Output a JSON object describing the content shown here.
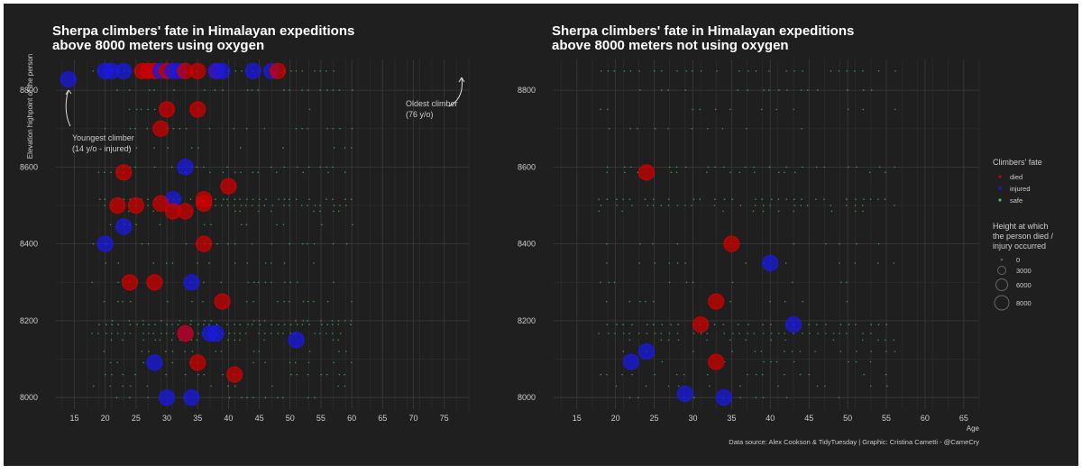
{
  "background": "#1f1f1f",
  "colors": {
    "died": "#cc0000",
    "injured": "#1a1adf",
    "safe": "#3fbf5f",
    "grid": "#3a3a3a",
    "text": "#cccccc",
    "title": "#ffffff"
  },
  "caption": "Data source: Alex Cookson & TidyTuesday | Graphic: Cristina Cametti - @CameCry",
  "legend": {
    "fate_title": "Climbers' fate",
    "fate_items": [
      "died",
      "injured",
      "safe"
    ],
    "size_title_lines": [
      "Height at which",
      "the person died /",
      "injury occurred"
    ],
    "size_items": [
      "0",
      "3000",
      "6000",
      "8000"
    ]
  },
  "annotations": {
    "youngest_line1": "Youngest climber",
    "youngest_line2": "(14 y/o - injured)",
    "oldest_line1": "Oldest climber",
    "oldest_line2": "(76 y/o)"
  },
  "chart_data": [
    {
      "type": "scatter",
      "title_lines": [
        "Sherpa climbers' fate in Himalayan expeditions",
        "above 8000 meters using oxygen"
      ],
      "xlabel": "",
      "ylabel": "Elevation highpoint of the person",
      "xlim": [
        12,
        79
      ],
      "ylim": [
        7970,
        8880
      ],
      "xticks": [
        15,
        20,
        25,
        30,
        35,
        40,
        45,
        50,
        55,
        60,
        65,
        70,
        75
      ],
      "yticks": [
        8000,
        8200,
        8400,
        8600,
        8800
      ],
      "points": [
        {
          "x": 14,
          "y": 8828,
          "fate": "injured"
        },
        {
          "x": 20,
          "y": 8850,
          "fate": "injured"
        },
        {
          "x": 21,
          "y": 8850,
          "fate": "injured"
        },
        {
          "x": 23,
          "y": 8850,
          "fate": "injured"
        },
        {
          "x": 26,
          "y": 8850,
          "fate": "died"
        },
        {
          "x": 27,
          "y": 8850,
          "fate": "died"
        },
        {
          "x": 28,
          "y": 8850,
          "fate": "died"
        },
        {
          "x": 29,
          "y": 8850,
          "fate": "injured"
        },
        {
          "x": 30,
          "y": 8850,
          "fate": "died"
        },
        {
          "x": 31,
          "y": 8850,
          "fate": "injured"
        },
        {
          "x": 32,
          "y": 8850,
          "fate": "injured"
        },
        {
          "x": 33,
          "y": 8850,
          "fate": "died"
        },
        {
          "x": 35,
          "y": 8850,
          "fate": "died"
        },
        {
          "x": 38,
          "y": 8850,
          "fate": "died"
        },
        {
          "x": 38,
          "y": 8850,
          "fate": "injured"
        },
        {
          "x": 39,
          "y": 8850,
          "fate": "injured"
        },
        {
          "x": 44,
          "y": 8850,
          "fate": "injured"
        },
        {
          "x": 47,
          "y": 8850,
          "fate": "injured"
        },
        {
          "x": 48,
          "y": 8850,
          "fate": "died"
        },
        {
          "x": 30,
          "y": 8750,
          "fate": "died"
        },
        {
          "x": 35,
          "y": 8750,
          "fate": "died"
        },
        {
          "x": 29,
          "y": 8700,
          "fate": "died"
        },
        {
          "x": 33,
          "y": 8600,
          "fate": "injured"
        },
        {
          "x": 23,
          "y": 8586,
          "fate": "died"
        },
        {
          "x": 40,
          "y": 8550,
          "fate": "died"
        },
        {
          "x": 31,
          "y": 8516,
          "fate": "injured"
        },
        {
          "x": 36,
          "y": 8516,
          "fate": "died"
        },
        {
          "x": 22,
          "y": 8500,
          "fate": "died"
        },
        {
          "x": 25,
          "y": 8500,
          "fate": "died"
        },
        {
          "x": 29,
          "y": 8505,
          "fate": "died"
        },
        {
          "x": 31,
          "y": 8485,
          "fate": "died"
        },
        {
          "x": 33,
          "y": 8485,
          "fate": "died"
        },
        {
          "x": 36,
          "y": 8505,
          "fate": "died"
        },
        {
          "x": 23,
          "y": 8445,
          "fate": "injured"
        },
        {
          "x": 20,
          "y": 8400,
          "fate": "injured"
        },
        {
          "x": 36,
          "y": 8400,
          "fate": "died"
        },
        {
          "x": 24,
          "y": 8300,
          "fate": "died"
        },
        {
          "x": 28,
          "y": 8300,
          "fate": "died"
        },
        {
          "x": 34,
          "y": 8300,
          "fate": "injured"
        },
        {
          "x": 39,
          "y": 8250,
          "fate": "died"
        },
        {
          "x": 33,
          "y": 8167,
          "fate": "injured"
        },
        {
          "x": 33,
          "y": 8167,
          "fate": "died"
        },
        {
          "x": 37,
          "y": 8167,
          "fate": "injured"
        },
        {
          "x": 38,
          "y": 8167,
          "fate": "injured"
        },
        {
          "x": 51,
          "y": 8150,
          "fate": "injured"
        },
        {
          "x": 28,
          "y": 8091,
          "fate": "injured"
        },
        {
          "x": 35,
          "y": 8091,
          "fate": "died"
        },
        {
          "x": 41,
          "y": 8060,
          "fate": "died"
        },
        {
          "x": 30,
          "y": 8000,
          "fate": "injured"
        },
        {
          "x": 34,
          "y": 8000,
          "fate": "injured"
        }
      ]
    },
    {
      "type": "scatter",
      "title_lines": [
        "Sherpa climbers' fate in Himalayan expeditions",
        "above 8000 meters not using oxygen"
      ],
      "xlabel": "Age",
      "ylabel": "",
      "xlim": [
        12,
        67
      ],
      "ylim": [
        7970,
        8880
      ],
      "xticks": [
        15,
        20,
        25,
        30,
        35,
        40,
        45,
        50,
        55,
        60,
        65
      ],
      "yticks": [
        8000,
        8200,
        8400,
        8600,
        8800
      ],
      "points": [
        {
          "x": 24,
          "y": 8586,
          "fate": "died"
        },
        {
          "x": 35,
          "y": 8400,
          "fate": "died"
        },
        {
          "x": 40,
          "y": 8350,
          "fate": "injured"
        },
        {
          "x": 33,
          "y": 8250,
          "fate": "died"
        },
        {
          "x": 31,
          "y": 8190,
          "fate": "died"
        },
        {
          "x": 43,
          "y": 8190,
          "fate": "injured"
        },
        {
          "x": 24,
          "y": 8120,
          "fate": "injured"
        },
        {
          "x": 22,
          "y": 8093,
          "fate": "injured"
        },
        {
          "x": 33,
          "y": 8093,
          "fate": "died"
        },
        {
          "x": 29,
          "y": 8010,
          "fate": "injured"
        },
        {
          "x": 34,
          "y": 8000,
          "fate": "injured"
        }
      ]
    }
  ]
}
